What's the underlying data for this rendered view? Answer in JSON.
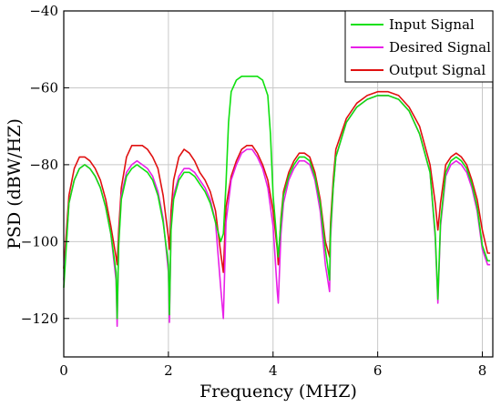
{
  "chart_data": {
    "type": "line",
    "title": "",
    "xlabel": "Frequency (MHZ)",
    "ylabel": "PSD (dBW/HZ)",
    "xlim": [
      0,
      8.2
    ],
    "ylim": [
      -130,
      -40
    ],
    "xticks": [
      0,
      2,
      4,
      6,
      8
    ],
    "yticks": [
      -40,
      -60,
      -80,
      -100,
      -120
    ],
    "xtick_labels": [
      "0",
      "2",
      "4",
      "6",
      "8"
    ],
    "ytick_labels": [
      "−40",
      "−60",
      "−80",
      "−100",
      "−120"
    ],
    "grid": true,
    "legend_position": "top-right",
    "series": [
      {
        "name": "Output Signal",
        "color": "#e01010",
        "x": [
          0.0,
          0.1,
          0.2,
          0.3,
          0.4,
          0.5,
          0.6,
          0.7,
          0.8,
          0.9,
          1.0,
          1.02,
          1.05,
          1.1,
          1.2,
          1.3,
          1.4,
          1.5,
          1.6,
          1.7,
          1.8,
          1.9,
          2.0,
          2.02,
          2.05,
          2.1,
          2.2,
          2.3,
          2.4,
          2.5,
          2.6,
          2.7,
          2.8,
          2.9,
          3.0,
          3.05,
          3.1,
          3.2,
          3.3,
          3.4,
          3.5,
          3.6,
          3.7,
          3.8,
          3.9,
          4.0,
          4.08,
          4.1,
          4.15,
          4.2,
          4.3,
          4.4,
          4.5,
          4.6,
          4.7,
          4.8,
          4.9,
          5.0,
          5.08,
          5.1,
          5.15,
          5.2,
          5.4,
          5.6,
          5.8,
          6.0,
          6.2,
          6.4,
          6.6,
          6.8,
          7.0,
          7.1,
          7.15,
          7.2,
          7.3,
          7.4,
          7.5,
          7.6,
          7.7,
          7.8,
          7.9,
          8.0,
          8.1,
          8.15
        ],
        "values": [
          -107,
          -88,
          -81,
          -78,
          -78,
          -79,
          -81,
          -84,
          -89,
          -96,
          -104,
          -106,
          -97,
          -86,
          -78,
          -75,
          -75,
          -75,
          -76,
          -78,
          -81,
          -88,
          -99,
          -102,
          -92,
          -84,
          -78,
          -76,
          -77,
          -79,
          -82,
          -84,
          -87,
          -92,
          -103,
          -108,
          -91,
          -83,
          -79,
          -76,
          -75,
          -75,
          -77,
          -80,
          -84,
          -92,
          -102,
          -106,
          -94,
          -87,
          -82,
          -79,
          -77,
          -77,
          -78,
          -82,
          -89,
          -100,
          -104,
          -95,
          -84,
          -76,
          -68,
          -64,
          -62,
          -61,
          -61,
          -62,
          -65,
          -70,
          -80,
          -90,
          -97,
          -90,
          -80,
          -78,
          -77,
          -78,
          -80,
          -84,
          -89,
          -97,
          -103,
          -103
        ]
      },
      {
        "name": "Desired Signal",
        "color": "#e820e8",
        "x": [
          0.0,
          0.1,
          0.2,
          0.3,
          0.4,
          0.5,
          0.6,
          0.7,
          0.8,
          0.9,
          1.0,
          1.02,
          1.05,
          1.1,
          1.2,
          1.3,
          1.4,
          1.5,
          1.6,
          1.7,
          1.8,
          1.9,
          2.0,
          2.02,
          2.05,
          2.1,
          2.2,
          2.3,
          2.4,
          2.5,
          2.6,
          2.7,
          2.8,
          2.9,
          3.0,
          3.05,
          3.1,
          3.2,
          3.3,
          3.4,
          3.5,
          3.6,
          3.7,
          3.8,
          3.9,
          4.0,
          4.08,
          4.1,
          4.15,
          4.2,
          4.3,
          4.4,
          4.5,
          4.6,
          4.7,
          4.8,
          4.9,
          5.0,
          5.08,
          5.1,
          5.15,
          5.2,
          5.4,
          5.6,
          5.8,
          6.0,
          6.2,
          6.4,
          6.6,
          6.8,
          7.0,
          7.1,
          7.15,
          7.2,
          7.3,
          7.4,
          7.5,
          7.6,
          7.7,
          7.8,
          7.9,
          8.0,
          8.1,
          8.15
        ],
        "values": [
          -110,
          -90,
          -84,
          -81,
          -80,
          -81,
          -83,
          -86,
          -91,
          -98,
          -110,
          -122,
          -100,
          -88,
          -82,
          -80,
          -79,
          -80,
          -81,
          -83,
          -87,
          -94,
          -108,
          -121,
          -96,
          -88,
          -83,
          -81,
          -81,
          -82,
          -84,
          -86,
          -89,
          -95,
          -112,
          -120,
          -95,
          -84,
          -80,
          -77,
          -76,
          -76,
          -78,
          -81,
          -86,
          -96,
          -113,
          -116,
          -98,
          -90,
          -84,
          -81,
          -79,
          -79,
          -80,
          -84,
          -92,
          -106,
          -113,
          -99,
          -86,
          -78,
          -69,
          -65,
          -63,
          -62,
          -62,
          -63,
          -66,
          -72,
          -82,
          -99,
          -116,
          -96,
          -83,
          -80,
          -79,
          -80,
          -82,
          -86,
          -92,
          -102,
          -106,
          -106
        ]
      },
      {
        "name": "Input Signal",
        "color": "#10e010",
        "x": [
          0.0,
          0.1,
          0.2,
          0.3,
          0.4,
          0.5,
          0.6,
          0.7,
          0.8,
          0.9,
          1.0,
          1.02,
          1.05,
          1.1,
          1.2,
          1.3,
          1.4,
          1.5,
          1.6,
          1.7,
          1.8,
          1.9,
          2.0,
          2.02,
          2.05,
          2.1,
          2.2,
          2.3,
          2.4,
          2.5,
          2.6,
          2.7,
          2.8,
          2.9,
          3.0,
          3.05,
          3.1,
          3.15,
          3.2,
          3.3,
          3.4,
          3.5,
          3.6,
          3.7,
          3.8,
          3.9,
          3.95,
          4.0,
          4.08,
          4.1,
          4.15,
          4.2,
          4.3,
          4.4,
          4.5,
          4.6,
          4.7,
          4.8,
          4.9,
          5.0,
          5.08,
          5.1,
          5.15,
          5.2,
          5.4,
          5.6,
          5.8,
          6.0,
          6.2,
          6.4,
          6.6,
          6.8,
          7.0,
          7.1,
          7.15,
          7.2,
          7.3,
          7.4,
          7.5,
          7.6,
          7.7,
          7.8,
          7.9,
          8.0,
          8.1,
          8.15
        ],
        "values": [
          -112,
          -90,
          -84,
          -81,
          -80,
          -81,
          -83,
          -86,
          -91,
          -98,
          -108,
          -120,
          -101,
          -89,
          -83,
          -81,
          -80,
          -81,
          -82,
          -84,
          -88,
          -95,
          -106,
          -119,
          -97,
          -89,
          -84,
          -82,
          -82,
          -83,
          -85,
          -87,
          -90,
          -95,
          -100,
          -98,
          -85,
          -69,
          -61,
          -58,
          -57,
          -57,
          -57,
          -57,
          -58,
          -62,
          -72,
          -88,
          -101,
          -104,
          -95,
          -88,
          -83,
          -80,
          -78,
          -78,
          -79,
          -83,
          -90,
          -102,
          -110,
          -97,
          -86,
          -78,
          -69,
          -65,
          -63,
          -62,
          -62,
          -63,
          -66,
          -72,
          -82,
          -98,
          -115,
          -95,
          -82,
          -79,
          -78,
          -79,
          -81,
          -85,
          -91,
          -101,
          -105,
          -105
        ]
      }
    ]
  },
  "legend": {
    "items": [
      {
        "label": "Input Signal",
        "color": "#10e010"
      },
      {
        "label": "Desired Signal",
        "color": "#e820e8"
      },
      {
        "label": "Output Signal",
        "color": "#e01010"
      }
    ]
  }
}
